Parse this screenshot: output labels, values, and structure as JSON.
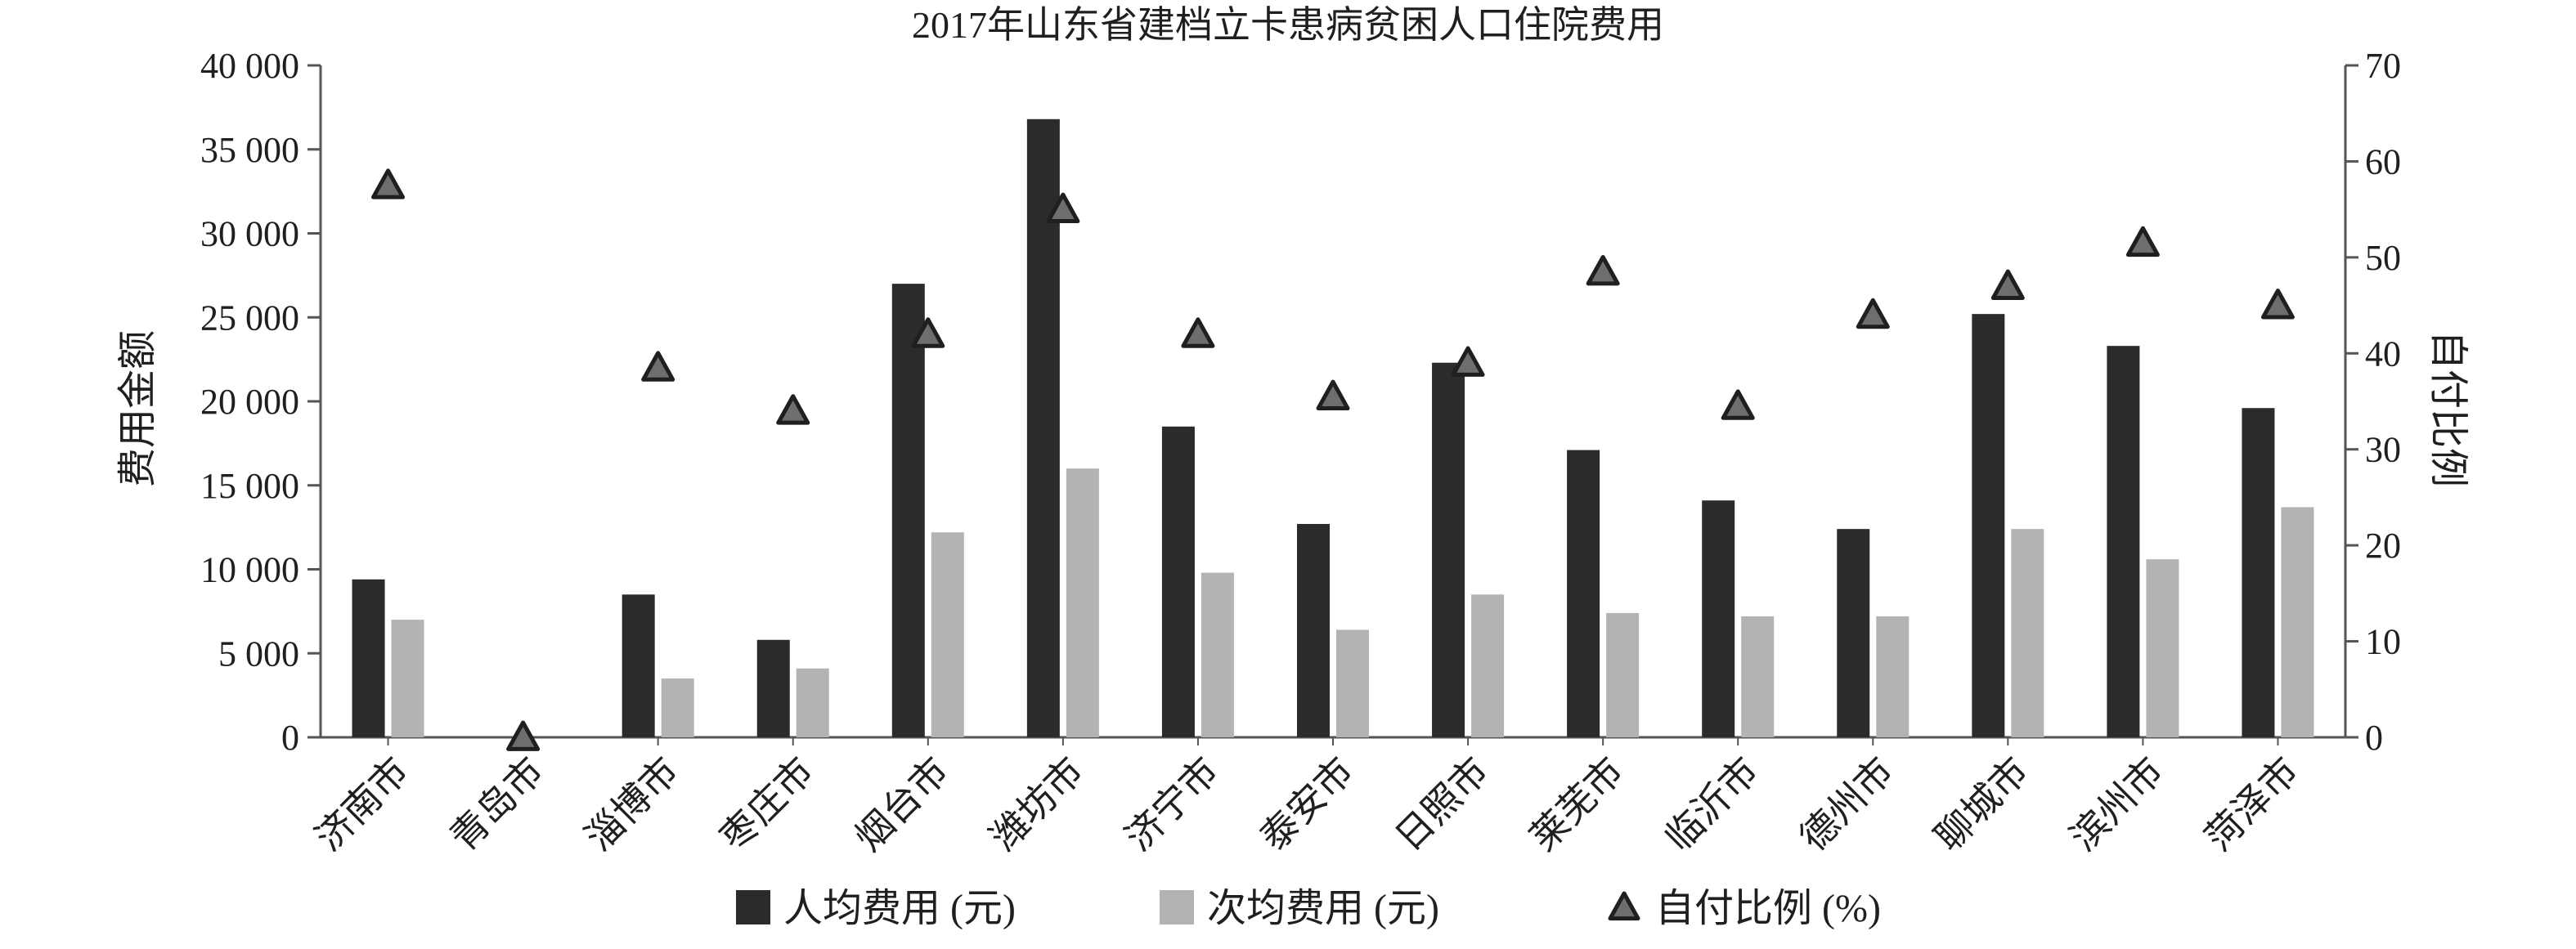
{
  "chart_data": {
    "type": "bar",
    "title": "2017年山东省建档立卡患病贫困人口住院费用",
    "ylabel": "费用金额",
    "y2label": "自付比例",
    "ylim": [
      0,
      40000
    ],
    "y2lim": [
      0,
      70
    ],
    "yticks": [
      "0",
      "5 000",
      "10 000",
      "15 000",
      "20 000",
      "25 000",
      "30 000",
      "35 000",
      "40 000"
    ],
    "y2ticks": [
      "0",
      "10",
      "20",
      "30",
      "40",
      "50",
      "60",
      "70"
    ],
    "categories": [
      "济南市",
      "青岛市",
      "淄博市",
      "枣庄市",
      "烟台市",
      "潍坊市",
      "济宁市",
      "泰安市",
      "日照市",
      "莱芜市",
      "临沂市",
      "德州市",
      "聊城市",
      "滨州市",
      "菏泽市"
    ],
    "series": [
      {
        "name": "人均费用 (元)",
        "type": "bar",
        "axis": "left",
        "color": "#2b2b2b",
        "values": [
          9400,
          0,
          8500,
          5800,
          27000,
          36800,
          18500,
          12700,
          22300,
          17100,
          14100,
          12400,
          25200,
          23300,
          19600
        ]
      },
      {
        "name": "次均费用 (元)",
        "type": "bar",
        "axis": "left",
        "color": "#b3b3b3",
        "values": [
          7000,
          0,
          3500,
          4100,
          12200,
          16000,
          9800,
          6400,
          8500,
          7400,
          7200,
          7200,
          12400,
          10600,
          13700
        ]
      },
      {
        "name": "自付比例 (%)",
        "type": "scatter",
        "axis": "right",
        "marker": "triangle",
        "color": "#6e6e6e",
        "values": [
          57.5,
          0,
          38.5,
          34,
          42,
          55,
          42,
          35.5,
          39,
          48.5,
          34.5,
          44,
          47,
          51.5,
          45
        ]
      }
    ],
    "legend": "bottom",
    "grid": false
  }
}
